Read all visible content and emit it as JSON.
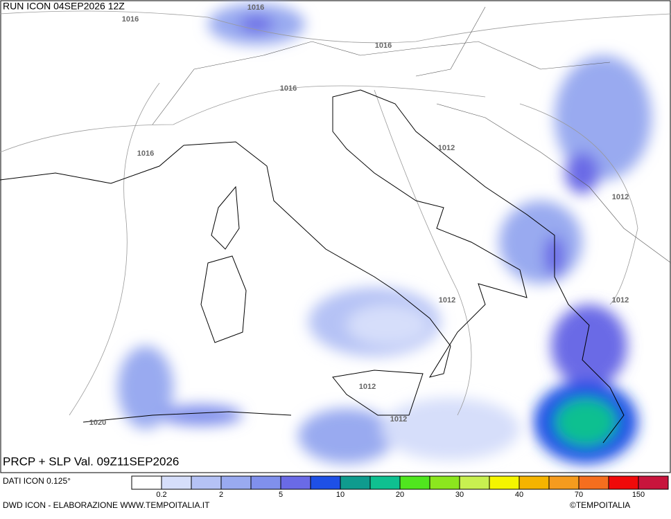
{
  "header": {
    "title": "RUN ICON 04SEP2026 12Z"
  },
  "isobars": {
    "labels": [
      1016,
      1016,
      1016,
      1016,
      1016,
      1012,
      1012,
      1012,
      1012,
      1012,
      1012,
      1020
    ]
  },
  "map_title": "PRCP + SLP Val. 09Z11SEP2026",
  "legend": {
    "source": "DATI ICON 0.125°",
    "colors": [
      "#ffffff",
      "#d6defa",
      "#b5c2f5",
      "#99aaf0",
      "#8090ec",
      "#6a6ae6",
      "#1e50e6",
      "#0f9b8e",
      "#0fc090",
      "#50e61e",
      "#8ce61e",
      "#c8f050",
      "#f5f500",
      "#f5b400",
      "#f59b1e",
      "#f56e1e",
      "#f00a0a",
      "#c8143c"
    ],
    "labels": [
      0.2,
      2,
      5,
      10,
      20,
      30,
      40,
      70,
      150
    ]
  },
  "footer": {
    "credit": "DWD ICON - ELABORAZIONE WWW.TEMPOITALIA.IT",
    "brand": "©TEMPOITALIA"
  }
}
